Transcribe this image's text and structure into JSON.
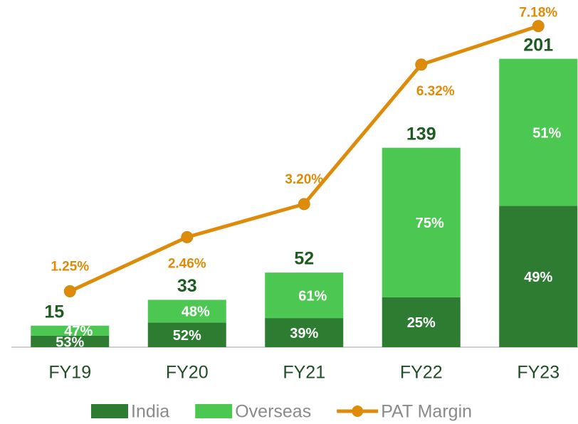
{
  "chart_data": {
    "type": "bar",
    "categories": [
      "FY19",
      "FY20",
      "FY21",
      "FY22",
      "FY23"
    ],
    "totals": [
      15,
      33,
      52,
      139,
      201
    ],
    "series": [
      {
        "name": "India",
        "color": "#2e7b32",
        "values": [
          53,
          52,
          39,
          25,
          49
        ],
        "value_labels": [
          "53%",
          "52%",
          "39%",
          "25%",
          "49%"
        ]
      },
      {
        "name": "Overseas",
        "color": "#4cc852",
        "values": [
          47,
          48,
          61,
          75,
          51
        ],
        "value_labels": [
          "47%",
          "48%",
          "61%",
          "75%",
          "51%"
        ]
      },
      {
        "name": "PAT Margin",
        "type": "line",
        "axis": "y2",
        "color": "#de8b0a",
        "values": [
          1.25,
          2.46,
          3.2,
          6.32,
          7.18
        ],
        "value_labels": [
          "1.25%",
          "2.46%",
          "3.20%",
          "6.32%",
          "7.18%"
        ]
      }
    ],
    "ylim": [
      0,
      240
    ],
    "y2lim": [
      0,
      7.7
    ],
    "legend": "bottom"
  }
}
